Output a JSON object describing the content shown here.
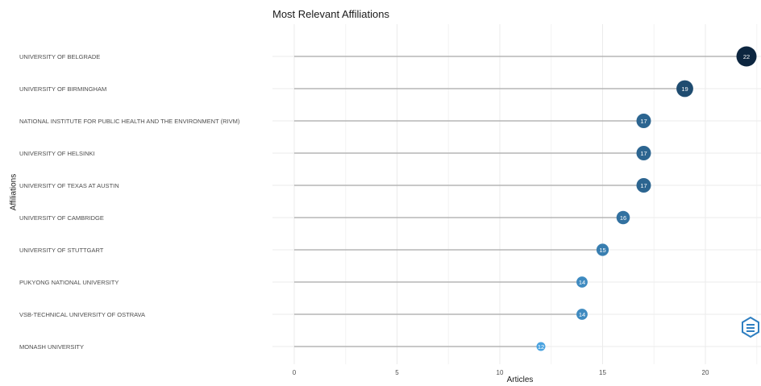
{
  "chart_data": {
    "type": "lollipop",
    "title": "Most Relevant Affiliations",
    "xlabel": "Articles",
    "ylabel": "Affiliations",
    "xlim": [
      0,
      22.5
    ],
    "xticks": [
      0,
      5,
      10,
      15,
      20
    ],
    "grid": true,
    "categories": [
      "UNIVERSITY OF BELGRADE",
      "UNIVERSITY OF BIRMINGHAM",
      "NATIONAL INSTITUTE FOR PUBLIC HEALTH AND THE ENVIRONMENT (RIVM)",
      "UNIVERSITY OF HELSINKI",
      "UNIVERSITY OF TEXAS AT AUSTIN",
      "UNIVERSITY OF CAMBRIDGE",
      "UNIVERSITY OF STUTTGART",
      "PUKYONG NATIONAL UNIVERSITY",
      "VSB-TECHNICAL UNIVERSITY OF OSTRAVA",
      "MONASH UNIVERSITY"
    ],
    "values": [
      22,
      19,
      17,
      17,
      17,
      16,
      15,
      14,
      14,
      12
    ],
    "colors": {
      "low": "#4aa3e0",
      "high": "#0d2640",
      "stem": "#b5b5b5",
      "grid": "#ebebeb"
    }
  },
  "logo": {
    "icon": "hexagon-logo-icon"
  }
}
